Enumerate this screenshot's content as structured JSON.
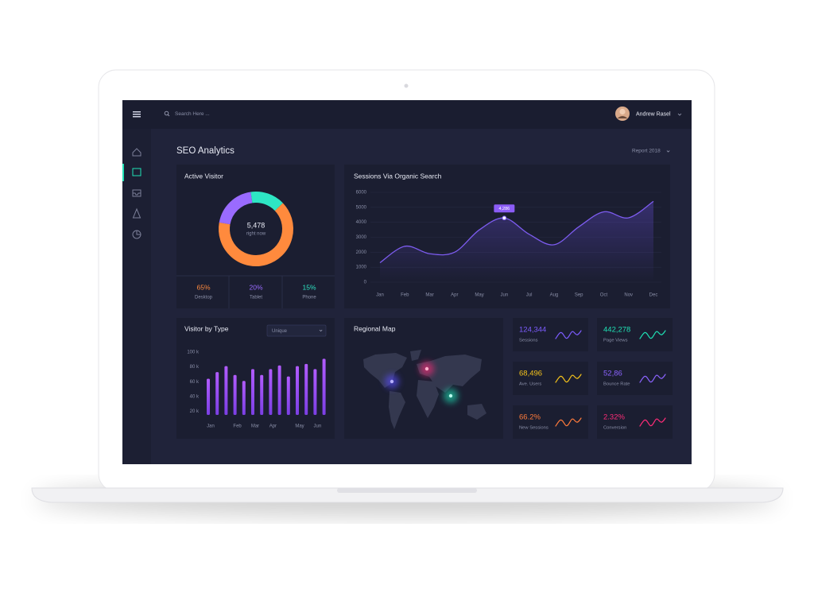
{
  "topbar": {
    "search_placeholder": "Search Here ...",
    "user_name": "Andrew Rasel"
  },
  "page": {
    "title": "SEO Analytics",
    "report_selector": "Report 2018"
  },
  "active_visitor": {
    "title": "Active Visitor",
    "center_value": "5,478",
    "center_label": "right now",
    "chart_data": {
      "type": "donut",
      "categories": [
        "Desktop",
        "Tablet",
        "Phone"
      ],
      "values": [
        65,
        20,
        15
      ],
      "value_labels": [
        "65%",
        "20%",
        "15%"
      ],
      "colors": [
        "#ff8a3d",
        "#9a6bff",
        "#2ee6c4"
      ]
    }
  },
  "sessions": {
    "title": "Sessions Via Organic Search",
    "chart_data": {
      "type": "line",
      "categories": [
        "Jan",
        "Feb",
        "Mar",
        "Apr",
        "May",
        "Jun",
        "Jul",
        "Aug",
        "Sep",
        "Oct",
        "Nov",
        "Dec"
      ],
      "values": [
        1300,
        2400,
        1900,
        2000,
        3500,
        4286,
        3200,
        2500,
        3700,
        4700,
        4300,
        5400
      ],
      "tooltip": "4,286",
      "color": "#7d5cf0",
      "ylim": [
        0,
        6000
      ],
      "yticks": [
        0,
        1000,
        2000,
        3000,
        4000,
        5000,
        6000
      ],
      "grid": true
    }
  },
  "visitor_by_type": {
    "title": "Visitor by Type",
    "filter": "Unique",
    "chart_data": {
      "type": "bar",
      "categories": [
        "Jan",
        null,
        null,
        "Feb",
        null,
        "Mar",
        null,
        "Apr",
        null,
        null,
        "May",
        null,
        "Jun",
        null
      ],
      "values": [
        64000,
        73000,
        81000,
        69000,
        61000,
        77000,
        69000,
        77000,
        82000,
        67000,
        81000,
        84000,
        77000,
        91000
      ],
      "color": "#9b4dff",
      "ylim": [
        15000,
        100000
      ],
      "yticks": [
        {
          "value": 20000,
          "label": "20 k"
        },
        {
          "value": 40000,
          "label": "40 k"
        },
        {
          "value": 60000,
          "label": "60 k"
        },
        {
          "value": 80000,
          "label": "80 k"
        },
        {
          "value": 100000,
          "label": "100 k"
        }
      ]
    }
  },
  "regional_map": {
    "title": "Regional Map"
  },
  "kpis": [
    {
      "value": "124,344",
      "label": "Sessions",
      "color": "#7c5cff"
    },
    {
      "value": "442,278",
      "label": "Page Views",
      "color": "#1fe0b4"
    },
    {
      "value": "68,496",
      "label": "Ave. Users",
      "color": "#f4c21b"
    },
    {
      "value": "52,86",
      "label": "Bounce Rate",
      "color": "#8b63ff"
    },
    {
      "value": "66.2%",
      "label": "New Sessions",
      "color": "#ff7b3b"
    },
    {
      "value": "2.32%",
      "label": "Conversion",
      "color": "#ff2c78"
    }
  ]
}
